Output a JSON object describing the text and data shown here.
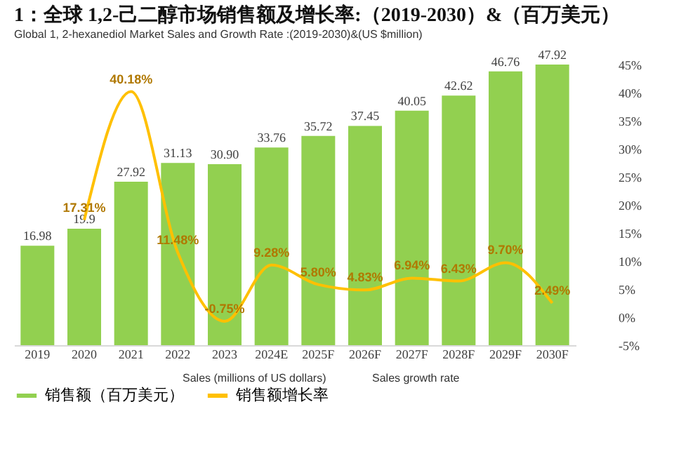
{
  "chart_data": {
    "type": "bar",
    "title": "1：全球 1,2-己二醇市场销售额及增长率:（2019-2030）&（百万美元）",
    "subtitle": "Global 1, 2-hexanediol Market Sales and Growth Rate :(2019-2030)&(US $million)",
    "categories": [
      "2019",
      "2020",
      "2021",
      "2022",
      "2023",
      "2024E",
      "2025F",
      "2026F",
      "2027F",
      "2028F",
      "2029F",
      "2030F"
    ],
    "series": [
      {
        "name": "销售额（百万美元）",
        "color": "#92d050",
        "values": [
          16.98,
          19.9,
          27.92,
          31.13,
          30.9,
          33.76,
          35.72,
          37.45,
          40.05,
          42.62,
          46.76,
          47.92
        ],
        "value_labels": [
          "16.98",
          "19.9",
          "27.92",
          "31.13",
          "30.90",
          "33.76",
          "35.72",
          "37.45",
          "40.05",
          "42.62",
          "46.76",
          "47.92"
        ]
      },
      {
        "name": "销售额增长率",
        "type": "line",
        "axis": "y2",
        "color": "#ffc000",
        "values": [
          null,
          17.31,
          40.18,
          11.48,
          -0.75,
          9.28,
          5.8,
          4.83,
          6.94,
          6.43,
          9.7,
          2.49
        ],
        "value_labels": [
          null,
          "17.31%",
          "40.18%",
          "11.48%",
          "-0.75%",
          "9.28%",
          "5.80%",
          "4.83%",
          "6.94%",
          "6.43%",
          "9.70%",
          "2.49%"
        ]
      }
    ],
    "y2lim": [
      -5,
      45
    ],
    "y2ticks": [
      {
        "value": -5,
        "label": "-5%"
      },
      {
        "value": 0,
        "label": "0%"
      },
      {
        "value": 5,
        "label": "5%"
      },
      {
        "value": 10,
        "label": "10%"
      },
      {
        "value": 15,
        "label": "15%"
      },
      {
        "value": 20,
        "label": "20%"
      },
      {
        "value": 25,
        "label": "25%"
      },
      {
        "value": 30,
        "label": "30%"
      },
      {
        "value": 35,
        "label": "35%"
      },
      {
        "value": 40,
        "label": "40%"
      },
      {
        "value": 45,
        "label": "45%"
      }
    ],
    "legend": "bottom",
    "annotations": [
      "Sales (millions of US dollars)",
      "Sales growth rate"
    ]
  }
}
